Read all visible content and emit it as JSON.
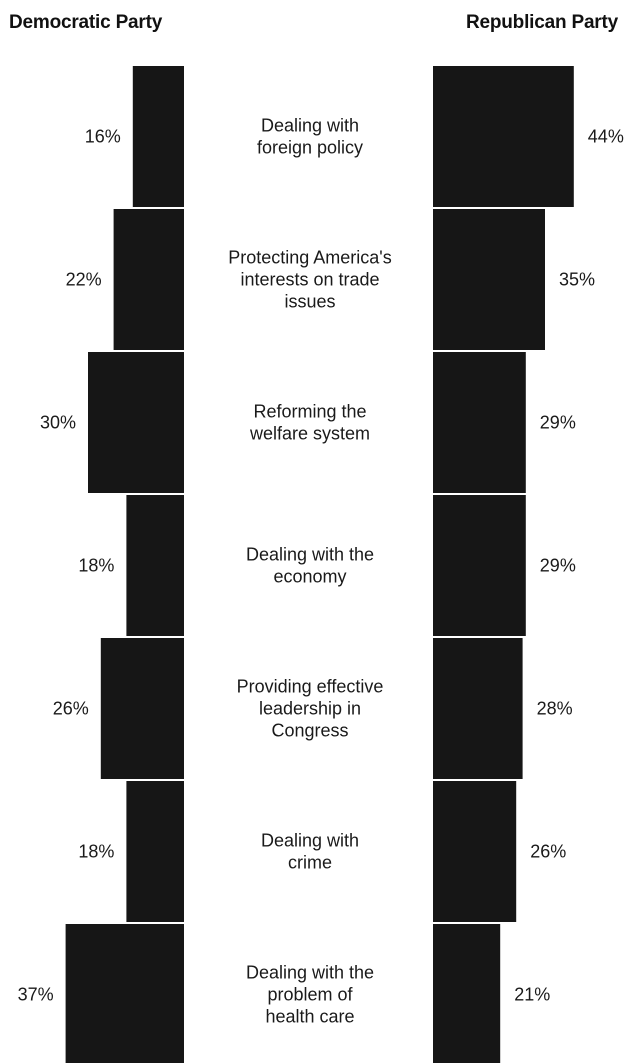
{
  "chart_data": {
    "type": "bar",
    "series": [
      {
        "name": "Democratic Party",
        "values": [
          16,
          22,
          30,
          18,
          26,
          18,
          37
        ],
        "labels": [
          "16%",
          "22%",
          "30%",
          "18%",
          "26%",
          "18%",
          "37%"
        ]
      },
      {
        "name": "Republican Party",
        "values": [
          44,
          35,
          29,
          29,
          28,
          26,
          21
        ],
        "labels": [
          "44%",
          "35%",
          "29%",
          "29%",
          "28%",
          "26%",
          "21%"
        ]
      }
    ],
    "categories": [
      [
        "Dealing with",
        "foreign policy"
      ],
      [
        "Protecting America's",
        "interests on trade",
        "issues"
      ],
      [
        "Reforming the",
        "welfare system"
      ],
      [
        "Dealing with the",
        "economy"
      ],
      [
        "Providing effective",
        "leadership in",
        "Congress"
      ],
      [
        "Dealing with",
        "crime"
      ],
      [
        "Dealing with the",
        "problem of",
        "health care"
      ]
    ],
    "unit": "%",
    "bar_color": "#161616",
    "orientation": "butterfly"
  }
}
